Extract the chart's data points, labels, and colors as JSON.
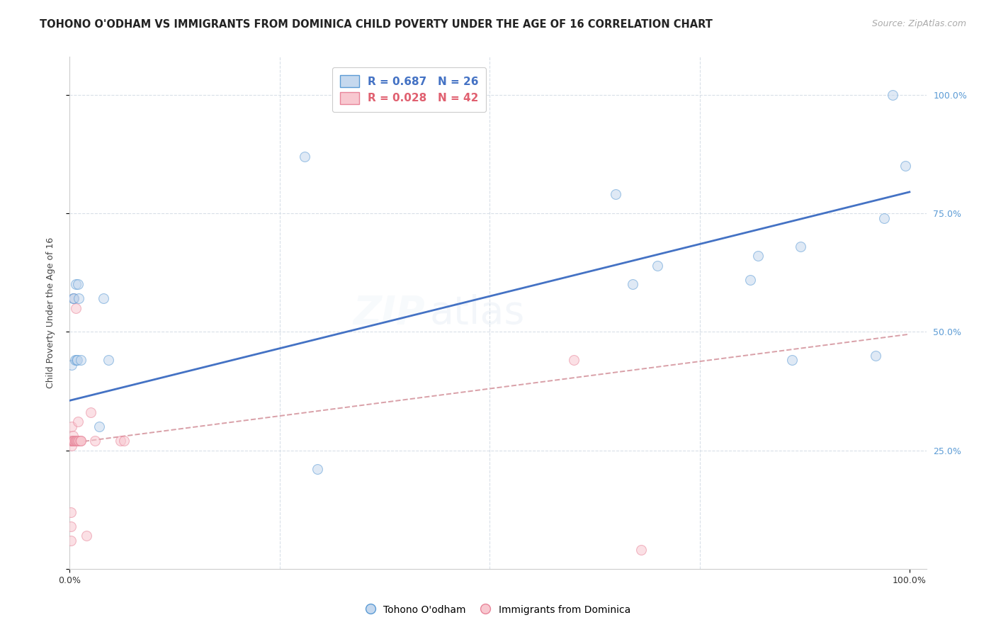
{
  "title": "TOHONO O'ODHAM VS IMMIGRANTS FROM DOMINICA CHILD POVERTY UNDER THE AGE OF 16 CORRELATION CHART",
  "source": "Source: ZipAtlas.com",
  "ylabel": "Child Poverty Under the Age of 16",
  "watermark_part1": "ZIP",
  "watermark_part2": "atlas",
  "legend1_label": "R = 0.687   N = 26",
  "legend2_label": "R = 0.028   N = 42",
  "legend1_series": "Tohono O'odham",
  "legend2_series": "Immigrants from Dominica",
  "blue_fill": "#c5d8ee",
  "blue_edge": "#5b9bd5",
  "pink_fill": "#f8c8d0",
  "pink_edge": "#e8859a",
  "line_blue": "#4472c4",
  "line_pink": "#d9a0a8",
  "blue_x": [
    0.002,
    0.004,
    0.005,
    0.006,
    0.007,
    0.008,
    0.009,
    0.01,
    0.011,
    0.013,
    0.035,
    0.04,
    0.046,
    0.28,
    0.295,
    0.65,
    0.67,
    0.7,
    0.81,
    0.82,
    0.86,
    0.87,
    0.96,
    0.97,
    0.98,
    0.995
  ],
  "blue_y": [
    0.43,
    0.57,
    0.57,
    0.44,
    0.6,
    0.44,
    0.44,
    0.6,
    0.57,
    0.44,
    0.3,
    0.57,
    0.44,
    0.87,
    0.21,
    0.79,
    0.6,
    0.64,
    0.61,
    0.66,
    0.44,
    0.68,
    0.45,
    0.74,
    1.0,
    0.85
  ],
  "pink_x": [
    0.001,
    0.001,
    0.001,
    0.002,
    0.002,
    0.002,
    0.002,
    0.002,
    0.003,
    0.003,
    0.003,
    0.004,
    0.004,
    0.004,
    0.004,
    0.005,
    0.005,
    0.005,
    0.005,
    0.005,
    0.006,
    0.006,
    0.006,
    0.007,
    0.007,
    0.008,
    0.008,
    0.009,
    0.01,
    0.01,
    0.011,
    0.011,
    0.012,
    0.013,
    0.013,
    0.02,
    0.025,
    0.06,
    0.065,
    0.6,
    0.68,
    0.03
  ],
  "pink_y": [
    0.06,
    0.09,
    0.12,
    0.27,
    0.3,
    0.27,
    0.26,
    0.27,
    0.27,
    0.27,
    0.27,
    0.27,
    0.27,
    0.28,
    0.27,
    0.57,
    0.27,
    0.27,
    0.27,
    0.27,
    0.27,
    0.27,
    0.27,
    0.27,
    0.55,
    0.27,
    0.27,
    0.27,
    0.31,
    0.27,
    0.27,
    0.27,
    0.27,
    0.27,
    0.27,
    0.07,
    0.33,
    0.27,
    0.27,
    0.44,
    0.04,
    0.27
  ],
  "blue_trendline_x": [
    0.0,
    1.0
  ],
  "blue_trendline_y": [
    0.355,
    0.795
  ],
  "pink_trendline_x": [
    0.0,
    1.0
  ],
  "pink_trendline_y": [
    0.265,
    0.495
  ],
  "xlim": [
    0.0,
    1.02
  ],
  "ylim": [
    0.0,
    1.08
  ],
  "grid_color": "#d8dfe8",
  "bg_color": "#ffffff",
  "marker_size": 100,
  "marker_alpha": 0.55,
  "title_fontsize": 10.5,
  "axis_label_fontsize": 9,
  "tick_fontsize": 9,
  "source_fontsize": 9,
  "watermark_fontsize1": 40,
  "watermark_fontsize2": 40,
  "watermark_alpha": 0.1,
  "watermark_color1": "#b8cfe8",
  "watermark_color2": "#90b0d0",
  "right_tick_color": "#5b9bd5"
}
